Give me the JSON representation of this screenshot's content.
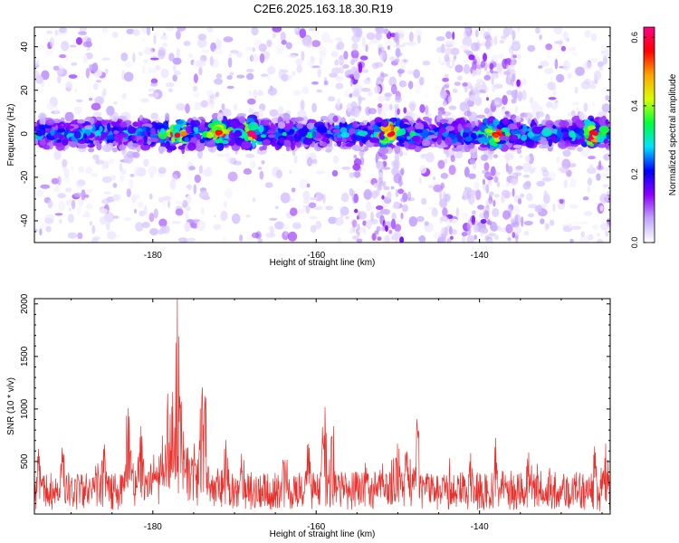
{
  "title": "C2E6.2025.163.18.30.R19",
  "chart_data": [
    {
      "type": "heatmap",
      "xlabel": "Height of straight line (km)",
      "ylabel": "Frequency (Hz)",
      "xlim": [
        -194.5,
        -124
      ],
      "ylim": [
        -50,
        49
      ],
      "xticks": [
        -180,
        -160,
        -140
      ],
      "xtick_labels": [
        "-180",
        "-160",
        "-140"
      ],
      "yticks": [
        40,
        20,
        0,
        -20,
        -40
      ],
      "ytick_labels": [
        "40",
        "20",
        "0",
        "-20",
        "-40"
      ],
      "colorbar": {
        "label": "Normalized spectral amplitude",
        "range": [
          0,
          0.63
        ],
        "ticks": [
          0.0,
          0.2,
          0.4,
          0.6
        ],
        "tick_labels": [
          "0.0",
          "0.2",
          "0.4",
          "0.6"
        ],
        "colormap": [
          "#ffffff",
          "#c2a6ff",
          "#8c00ff",
          "#0000ff",
          "#00e1ff",
          "#00ff3c",
          "#d8ff00",
          "#ffa500",
          "#ff0000",
          "#ff0088"
        ]
      },
      "band_center_hz": 0,
      "band_halfwidth_hz": 6,
      "band_peak_amplitude": 0.63,
      "strongest_columns_km": [
        -177,
        -172,
        -168,
        -151,
        -138,
        -126
      ],
      "grid": false
    },
    {
      "type": "line",
      "xlabel": "Height of straight line (km)",
      "ylabel": "SNR (10 * v/v)",
      "xlim": [
        -194.5,
        -124
      ],
      "ylim": [
        0,
        2050
      ],
      "xticks": [
        -180,
        -160,
        -140
      ],
      "xtick_labels": [
        "-180",
        "-160",
        "-140"
      ],
      "yticks": [
        500,
        1000,
        1500,
        2000
      ],
      "ytick_labels": [
        "500",
        "1000",
        "1500",
        "2000"
      ],
      "color": "#e8302c",
      "baseline_snr": 300,
      "peaks": [
        {
          "x": -194,
          "y": 650
        },
        {
          "x": -191,
          "y": 690
        },
        {
          "x": -186,
          "y": 720
        },
        {
          "x": -183,
          "y": 1200
        },
        {
          "x": -181.5,
          "y": 1000
        },
        {
          "x": -178,
          "y": 1340
        },
        {
          "x": -177.5,
          "y": 1250
        },
        {
          "x": -177,
          "y": 2050
        },
        {
          "x": -176.6,
          "y": 1700
        },
        {
          "x": -174,
          "y": 1300
        },
        {
          "x": -173.6,
          "y": 1290
        },
        {
          "x": -171,
          "y": 850
        },
        {
          "x": -169,
          "y": 700
        },
        {
          "x": -164,
          "y": 620
        },
        {
          "x": -161,
          "y": 740
        },
        {
          "x": -159,
          "y": 1070
        },
        {
          "x": -158,
          "y": 1070
        },
        {
          "x": -154,
          "y": 560
        },
        {
          "x": -152,
          "y": 600
        },
        {
          "x": -150,
          "y": 950
        },
        {
          "x": -149,
          "y": 660
        },
        {
          "x": -147.6,
          "y": 960
        },
        {
          "x": -141,
          "y": 620
        },
        {
          "x": -138,
          "y": 740
        },
        {
          "x": -134,
          "y": 620
        },
        {
          "x": -126,
          "y": 720
        },
        {
          "x": -124.5,
          "y": 700
        }
      ],
      "grid": false
    }
  ]
}
